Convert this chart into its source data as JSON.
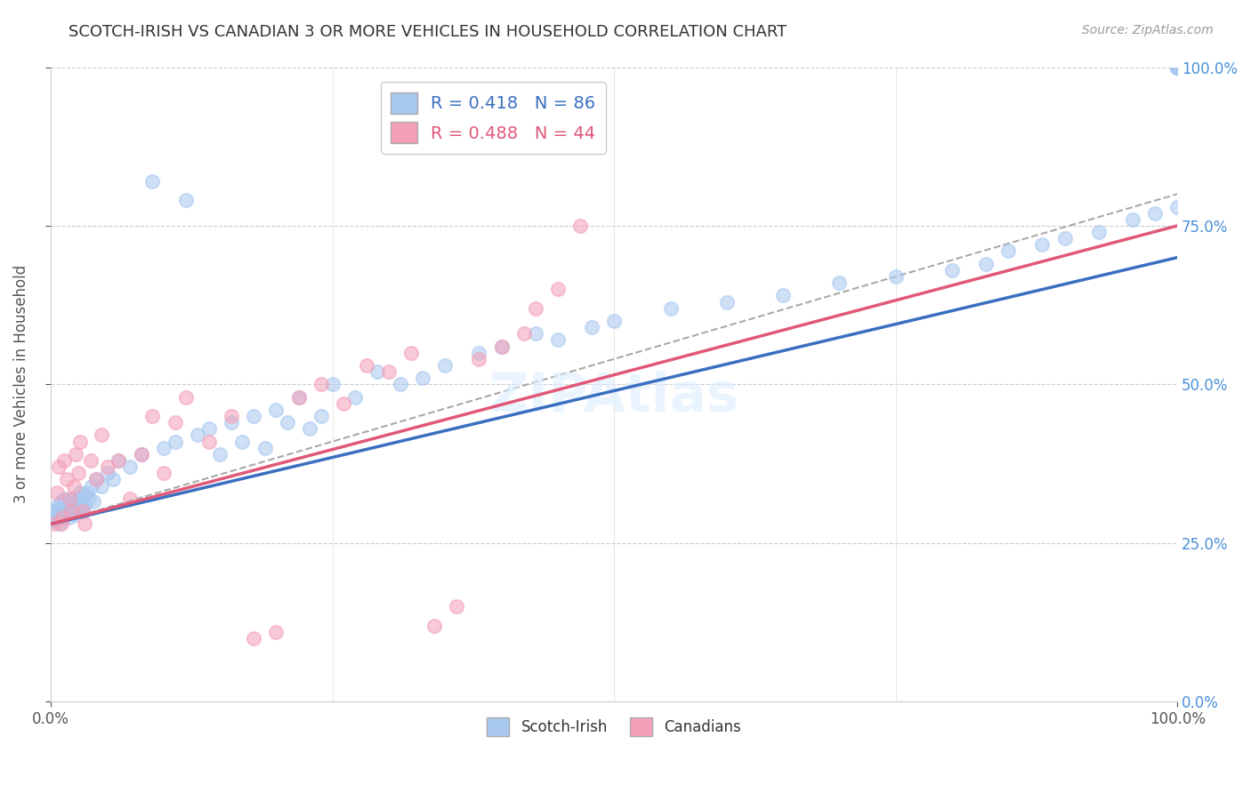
{
  "title": "SCOTCH-IRISH VS CANADIAN 3 OR MORE VEHICLES IN HOUSEHOLD CORRELATION CHART",
  "source": "Source: ZipAtlas.com",
  "ylabel": "3 or more Vehicles in Household",
  "legend_entry1": "R = 0.418   N = 86",
  "legend_entry2": "R = 0.488   N = 44",
  "legend_label1": "Scotch-Irish",
  "legend_label2": "Canadians",
  "scotch_irish_color": "#a8c8f0",
  "canadian_color": "#f4a0b8",
  "scotch_irish_line_color": "#3a6fc0",
  "canadian_line_color": "#e05878",
  "watermark": "ZIPAtlas",
  "background_color": "#ffffff",
  "R_scotch": 0.418,
  "N_scotch": 86,
  "R_canadian": 0.488,
  "N_canadian": 44,
  "scotch_x": [
    0.2,
    0.3,
    0.4,
    0.5,
    0.6,
    0.7,
    0.8,
    0.9,
    1.0,
    1.1,
    1.2,
    1.3,
    1.4,
    1.5,
    1.6,
    1.7,
    1.8,
    1.9,
    2.0,
    2.1,
    2.2,
    2.3,
    2.4,
    2.5,
    2.6,
    2.7,
    2.8,
    2.9,
    3.0,
    3.2,
    3.4,
    3.6,
    3.8,
    4.0,
    4.5,
    5.0,
    5.5,
    6.0,
    7.0,
    8.0,
    9.0,
    10.0,
    11.0,
    12.0,
    13.0,
    14.0,
    15.0,
    16.0,
    17.0,
    18.0,
    19.0,
    20.0,
    21.0,
    22.0,
    23.0,
    24.0,
    25.0,
    27.0,
    29.0,
    31.0,
    33.0,
    35.0,
    38.0,
    40.0,
    43.0,
    45.0,
    48.0,
    50.0,
    55.0,
    60.0,
    65.0,
    70.0,
    75.0,
    80.0,
    83.0,
    85.0,
    88.0,
    90.0,
    93.0,
    96.0,
    98.0,
    100.0,
    100.0,
    100.0,
    100.0,
    100.0
  ],
  "scotch_y": [
    28.5,
    29.0,
    30.0,
    29.5,
    31.0,
    30.5,
    28.0,
    31.5,
    30.0,
    29.0,
    32.0,
    30.0,
    31.0,
    30.5,
    29.0,
    31.0,
    30.0,
    32.0,
    30.5,
    29.5,
    31.0,
    31.5,
    30.0,
    32.0,
    33.0,
    31.0,
    30.0,
    32.5,
    31.0,
    33.0,
    32.0,
    34.0,
    31.5,
    35.0,
    34.0,
    36.0,
    35.0,
    38.0,
    37.0,
    39.0,
    82.0,
    40.0,
    41.0,
    79.0,
    42.0,
    43.0,
    39.0,
    44.0,
    41.0,
    45.0,
    40.0,
    46.0,
    44.0,
    48.0,
    43.0,
    45.0,
    50.0,
    48.0,
    52.0,
    50.0,
    51.0,
    53.0,
    55.0,
    56.0,
    58.0,
    57.0,
    59.0,
    60.0,
    62.0,
    63.0,
    64.0,
    66.0,
    67.0,
    68.0,
    69.0,
    71.0,
    72.0,
    73.0,
    74.0,
    76.0,
    77.0,
    78.0,
    100.0,
    100.0,
    100.0,
    100.0
  ],
  "canadian_x": [
    0.3,
    0.5,
    0.7,
    0.9,
    1.0,
    1.2,
    1.4,
    1.6,
    1.8,
    2.0,
    2.2,
    2.4,
    2.6,
    2.8,
    3.0,
    3.5,
    4.0,
    4.5,
    5.0,
    6.0,
    7.0,
    8.0,
    9.0,
    10.0,
    11.0,
    12.0,
    14.0,
    16.0,
    18.0,
    20.0,
    22.0,
    24.0,
    26.0,
    28.0,
    30.0,
    32.0,
    34.0,
    36.0,
    38.0,
    40.0,
    42.0,
    43.0,
    45.0,
    47.0
  ],
  "canadian_y": [
    28.0,
    33.0,
    37.0,
    28.0,
    29.0,
    38.0,
    35.0,
    32.0,
    30.0,
    34.0,
    39.0,
    36.0,
    41.0,
    30.0,
    28.0,
    38.0,
    35.0,
    42.0,
    37.0,
    38.0,
    32.0,
    39.0,
    45.0,
    36.0,
    44.0,
    48.0,
    41.0,
    45.0,
    10.0,
    11.0,
    48.0,
    50.0,
    47.0,
    53.0,
    52.0,
    55.0,
    12.0,
    15.0,
    54.0,
    56.0,
    58.0,
    62.0,
    65.0,
    75.0
  ]
}
